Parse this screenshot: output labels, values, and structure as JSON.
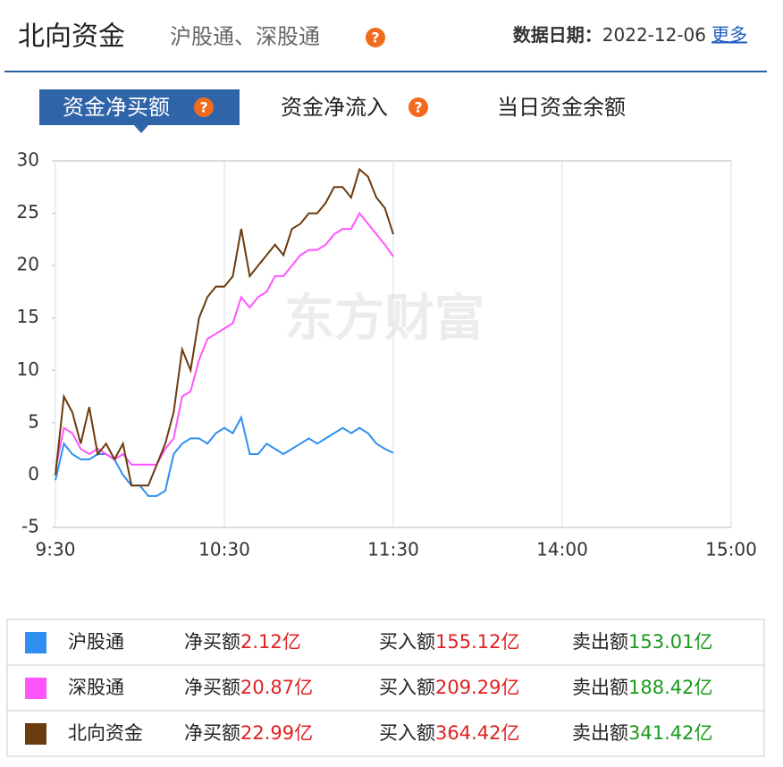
{
  "header": {
    "title": "北向资金",
    "subtitle": "沪股通、深股通",
    "date_label": "数据日期：",
    "date": "2022-12-06",
    "more": "更多"
  },
  "tabs": [
    "资金净买额",
    "资金净流入",
    "当日资金余额"
  ],
  "watermark": "东方财富",
  "chart_data": {
    "type": "line",
    "x": [
      0,
      3,
      6,
      9,
      12,
      15,
      18,
      21,
      24,
      27,
      30,
      33,
      36,
      39,
      42,
      45,
      48,
      51,
      54,
      57,
      60,
      63,
      66,
      69,
      72,
      75,
      78,
      81,
      84,
      87,
      90,
      93,
      96,
      99,
      102,
      105,
      108,
      111,
      114,
      117,
      120
    ],
    "xlim": [
      0,
      240
    ],
    "xticks": [
      {
        "value": 0,
        "label": "9:30"
      },
      {
        "value": 60,
        "label": "10:30"
      },
      {
        "value": 120,
        "label": "11:30"
      },
      {
        "value": 180,
        "label": "14:00"
      },
      {
        "value": 240,
        "label": "15:00"
      }
    ],
    "ylim": [
      -5,
      30
    ],
    "yticks": [
      -5,
      0,
      5,
      10,
      15,
      20,
      25,
      30
    ],
    "grid": "x",
    "series": [
      {
        "name": "沪股通",
        "color": "#2f8ff0",
        "values": [
          -0.5,
          3,
          2,
          1.5,
          1.5,
          2,
          2,
          1.5,
          0,
          -1,
          -1,
          -2,
          -2,
          -1.5,
          2,
          3,
          3.5,
          3.5,
          3,
          4,
          4.5,
          4,
          5.5,
          2,
          2,
          3,
          2.5,
          2,
          2.5,
          3,
          3.5,
          3,
          3.5,
          4,
          4.5,
          4,
          4.5,
          4,
          3,
          2.5,
          2.12
        ]
      },
      {
        "name": "深股通",
        "color": "#ff55ff",
        "values": [
          0.5,
          4.5,
          4,
          2.5,
          2,
          2.5,
          2,
          1.5,
          2,
          1,
          1,
          1,
          1,
          2.5,
          3.5,
          7.5,
          8,
          11,
          13,
          13.5,
          14,
          14.5,
          17,
          16,
          17,
          17.5,
          19,
          19,
          20,
          21,
          21.5,
          21.5,
          22,
          23,
          23.5,
          23.5,
          25,
          24,
          23,
          22,
          20.87
        ]
      },
      {
        "name": "北向资金",
        "color": "#6b3a0e",
        "values": [
          0,
          7.5,
          6,
          3,
          6.5,
          2,
          3,
          1.5,
          3,
          -1,
          -1,
          -1,
          1,
          3,
          6,
          12,
          10,
          15,
          17,
          18,
          18,
          19,
          23.5,
          19,
          20,
          21,
          22,
          21,
          23.5,
          24,
          25,
          25,
          26,
          27.5,
          27.5,
          26.5,
          29.2,
          28.5,
          26.5,
          25.5,
          22.99
        ]
      }
    ]
  },
  "summary": {
    "net_label": "净买额",
    "buy_label": "买入额",
    "sell_label": "卖出额",
    "rows": [
      {
        "net": "2.12亿",
        "buy": "155.12亿",
        "sell": "153.01亿"
      },
      {
        "net": "20.87亿",
        "buy": "209.29亿",
        "sell": "188.42亿"
      },
      {
        "net": "22.99亿",
        "buy": "364.42亿",
        "sell": "341.42亿"
      }
    ]
  }
}
